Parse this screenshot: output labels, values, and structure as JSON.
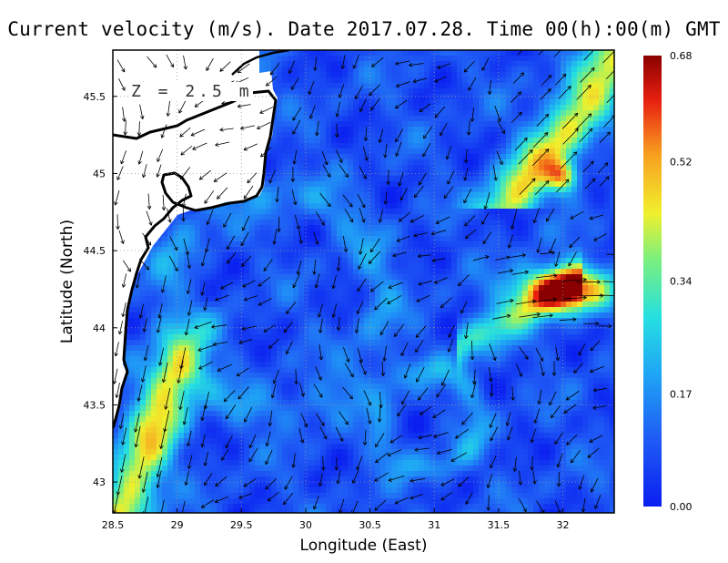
{
  "title": "Current velocity (m/s). Date 2017.07.28. Time 00(h):00(m) GMT",
  "depth_label": "Z = 2.5 m",
  "chart_data": {
    "type": "heatmap",
    "xlabel": "Longitude (East)",
    "ylabel": "Latitude (North)",
    "xlim": [
      28.5,
      32.4
    ],
    "ylim": [
      42.8,
      45.8
    ],
    "xticks": [
      "28.5",
      "29",
      "29.5",
      "30",
      "30.5",
      "31",
      "31.5",
      "32"
    ],
    "yticks": [
      "43",
      "43.5",
      "44",
      "44.5",
      "45",
      "45.5"
    ],
    "colorbar": {
      "min": 0,
      "max": 0.68,
      "ticks": [
        "0.00",
        "0.17",
        "0.34",
        "0.52",
        "0.68"
      ]
    },
    "grid": true,
    "features": [
      {
        "name": "jet-southwest",
        "lon": 28.8,
        "lat": 43.3,
        "speed": 0.5
      },
      {
        "name": "eddy-east",
        "lon": 32.0,
        "lat": 44.25,
        "speed": 0.68
      },
      {
        "name": "jet-northeast",
        "lon": 32.2,
        "lat": 45.5,
        "speed": 0.55
      }
    ]
  },
  "colors": {
    "land": "#ffffff",
    "coast": "#000000",
    "low": "#1a4cf5",
    "high": "#8b0000"
  }
}
